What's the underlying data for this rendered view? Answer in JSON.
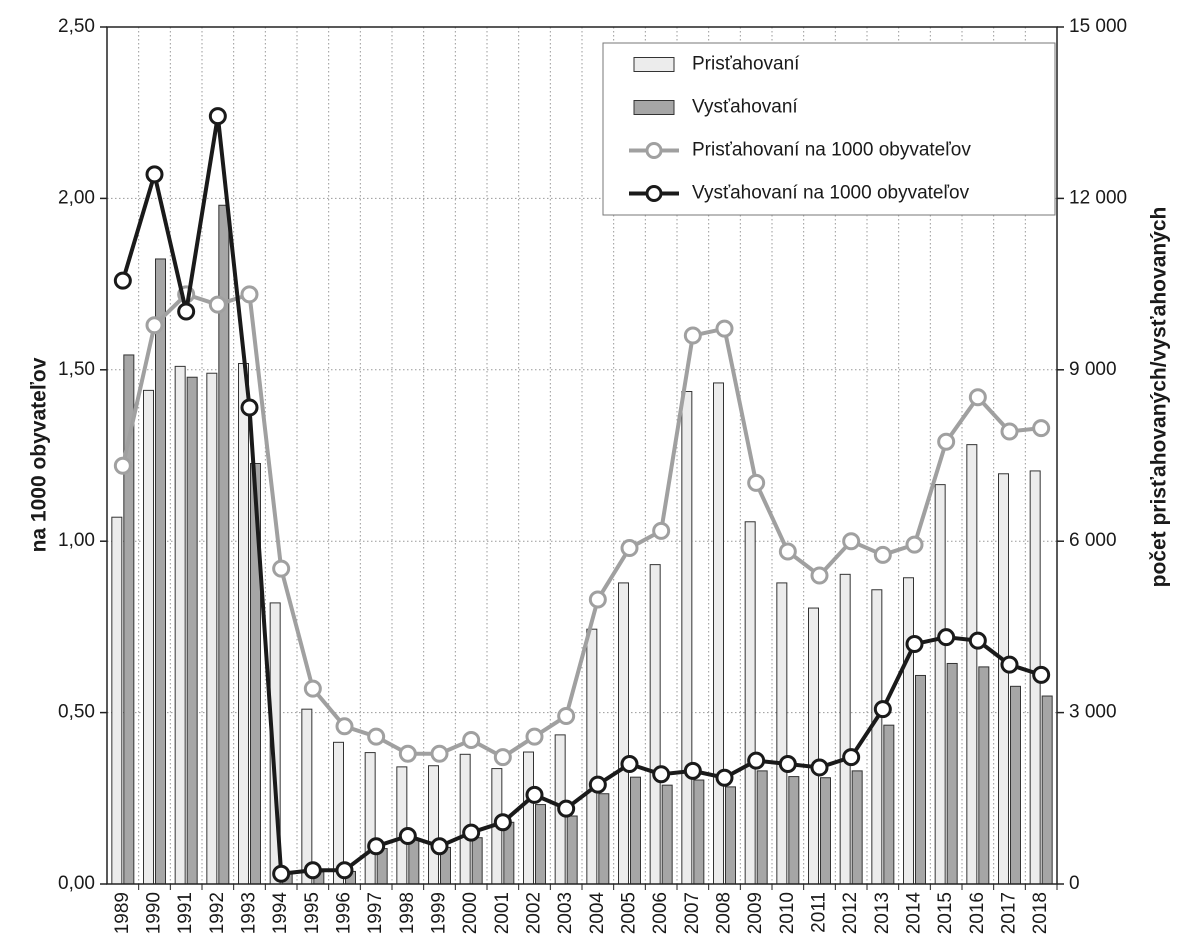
{
  "chart_data": {
    "type": "bar",
    "y_label": "na 1000 obyvateľov",
    "y2_label": "počet prisťahovaných/vysťahovaných",
    "categories": [
      "1989",
      "1990",
      "1991",
      "1992",
      "1993",
      "1994",
      "1995",
      "1996",
      "1997",
      "1998",
      "1999",
      "2000",
      "2001",
      "2002",
      "2003",
      "2004",
      "2005",
      "2006",
      "2007",
      "2008",
      "2009",
      "2010",
      "2011",
      "2012",
      "2013",
      "2014",
      "2015",
      "2016",
      "2017",
      "2018"
    ],
    "ylim": [
      0,
      2.5
    ],
    "yticks": [
      {
        "value": 0,
        "label": "0,00"
      },
      {
        "value": 0.5,
        "label": "0,50"
      },
      {
        "value": 1,
        "label": "1,00"
      },
      {
        "value": 1.5,
        "label": "1,50"
      },
      {
        "value": 2,
        "label": "2,00"
      },
      {
        "value": 2.5,
        "label": "2,50"
      }
    ],
    "y2lim": [
      0,
      15000
    ],
    "y2ticks": [
      0,
      {
        "value": 3000,
        "label": "3 000"
      },
      {
        "value": 6000,
        "label": "6 000"
      },
      {
        "value": 9000,
        "label": "9 000"
      },
      {
        "value": 12000,
        "label": "12 000"
      },
      {
        "value": 15000,
        "label": "15 000"
      }
    ],
    "grid": true,
    "legend": "upper right",
    "series": [
      {
        "name": "Prisťahovaní",
        "type": "bar",
        "axis": "y2",
        "color": "#ececec",
        "values": [
          6420,
          8640,
          9060,
          8940,
          9110,
          4920,
          3060,
          2480,
          2300,
          2050,
          2070,
          2270,
          2020,
          2310,
          2610,
          4460,
          5270,
          5590,
          8620,
          8770,
          6340,
          5270,
          4830,
          5420,
          5150,
          5360,
          6990,
          7690,
          7180,
          7230
        ]
      },
      {
        "name": "Vysťahovaní",
        "type": "bar",
        "axis": "y2",
        "color": "#a6a6a6",
        "values": [
          9260,
          10940,
          8870,
          11880,
          7360,
          190,
          210,
          220,
          620,
          770,
          640,
          810,
          1080,
          1390,
          1190,
          1580,
          1870,
          1730,
          1820,
          1700,
          1980,
          1880,
          1860,
          1980,
          2780,
          3650,
          3860,
          3800,
          3460,
          3290
        ]
      },
      {
        "name": "Prisťahovaní na 1000 obyvateľov",
        "type": "line",
        "color": "#a0a0a0",
        "values": [
          1.22,
          1.63,
          1.72,
          1.69,
          1.72,
          0.92,
          0.57,
          0.46,
          0.43,
          0.38,
          0.38,
          0.42,
          0.37,
          0.43,
          0.49,
          0.83,
          0.98,
          1.03,
          1.6,
          1.62,
          1.17,
          0.97,
          0.9,
          1.0,
          0.96,
          0.99,
          1.29,
          1.42,
          1.32,
          1.33
        ]
      },
      {
        "name": "Vysťahovaní na 1000 obyvateľov",
        "type": "line",
        "color": "#1a1a1a",
        "values": [
          1.76,
          2.07,
          1.67,
          2.24,
          1.39,
          0.03,
          0.04,
          0.04,
          0.11,
          0.14,
          0.11,
          0.15,
          0.18,
          0.26,
          0.22,
          0.29,
          0.35,
          0.32,
          0.33,
          0.31,
          0.36,
          0.35,
          0.34,
          0.37,
          0.51,
          0.7,
          0.72,
          0.71,
          0.64,
          0.61
        ]
      }
    ]
  }
}
